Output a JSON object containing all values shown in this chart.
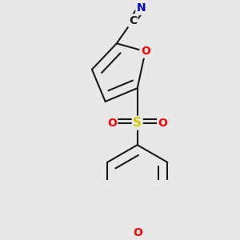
{
  "bg_color": "#e8e8e8",
  "bond_color": "#1a1a1a",
  "atom_colors": {
    "O": "#ff0000",
    "N": "#0000cd",
    "S": "#cccc00",
    "C": "#1a1a1a"
  },
  "lw": 1.5,
  "fs": 10,
  "dbo": 0.018
}
